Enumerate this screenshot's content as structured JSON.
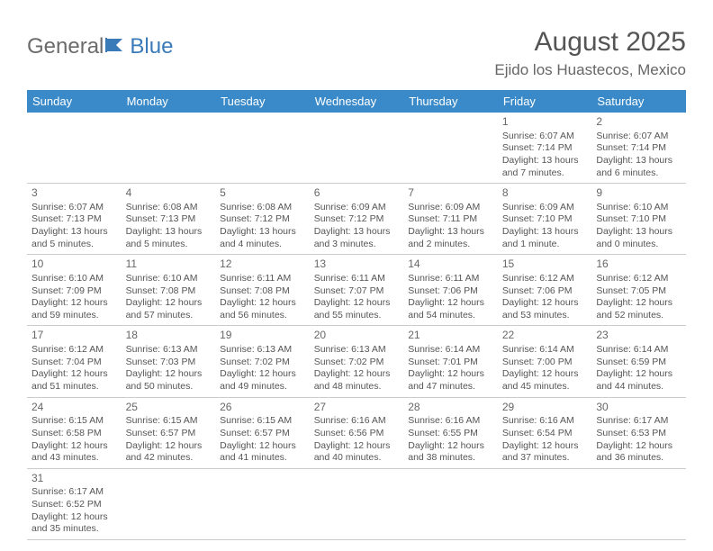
{
  "logo": {
    "part1": "General",
    "part2": "Blue"
  },
  "title": "August 2025",
  "location": "Ejido los Huastecos, Mexico",
  "weekdays": [
    "Sunday",
    "Monday",
    "Tuesday",
    "Wednesday",
    "Thursday",
    "Friday",
    "Saturday"
  ],
  "colors": {
    "header_bg": "#3a8ac9",
    "brand_gray": "#6b6b6b",
    "brand_blue": "#3a7ab8"
  },
  "grid": [
    [
      null,
      null,
      null,
      null,
      null,
      {
        "d": "1",
        "sr": "Sunrise: 6:07 AM",
        "ss": "Sunset: 7:14 PM",
        "dl1": "Daylight: 13 hours",
        "dl2": "and 7 minutes."
      },
      {
        "d": "2",
        "sr": "Sunrise: 6:07 AM",
        "ss": "Sunset: 7:14 PM",
        "dl1": "Daylight: 13 hours",
        "dl2": "and 6 minutes."
      }
    ],
    [
      {
        "d": "3",
        "sr": "Sunrise: 6:07 AM",
        "ss": "Sunset: 7:13 PM",
        "dl1": "Daylight: 13 hours",
        "dl2": "and 5 minutes."
      },
      {
        "d": "4",
        "sr": "Sunrise: 6:08 AM",
        "ss": "Sunset: 7:13 PM",
        "dl1": "Daylight: 13 hours",
        "dl2": "and 5 minutes."
      },
      {
        "d": "5",
        "sr": "Sunrise: 6:08 AM",
        "ss": "Sunset: 7:12 PM",
        "dl1": "Daylight: 13 hours",
        "dl2": "and 4 minutes."
      },
      {
        "d": "6",
        "sr": "Sunrise: 6:09 AM",
        "ss": "Sunset: 7:12 PM",
        "dl1": "Daylight: 13 hours",
        "dl2": "and 3 minutes."
      },
      {
        "d": "7",
        "sr": "Sunrise: 6:09 AM",
        "ss": "Sunset: 7:11 PM",
        "dl1": "Daylight: 13 hours",
        "dl2": "and 2 minutes."
      },
      {
        "d": "8",
        "sr": "Sunrise: 6:09 AM",
        "ss": "Sunset: 7:10 PM",
        "dl1": "Daylight: 13 hours",
        "dl2": "and 1 minute."
      },
      {
        "d": "9",
        "sr": "Sunrise: 6:10 AM",
        "ss": "Sunset: 7:10 PM",
        "dl1": "Daylight: 13 hours",
        "dl2": "and 0 minutes."
      }
    ],
    [
      {
        "d": "10",
        "sr": "Sunrise: 6:10 AM",
        "ss": "Sunset: 7:09 PM",
        "dl1": "Daylight: 12 hours",
        "dl2": "and 59 minutes."
      },
      {
        "d": "11",
        "sr": "Sunrise: 6:10 AM",
        "ss": "Sunset: 7:08 PM",
        "dl1": "Daylight: 12 hours",
        "dl2": "and 57 minutes."
      },
      {
        "d": "12",
        "sr": "Sunrise: 6:11 AM",
        "ss": "Sunset: 7:08 PM",
        "dl1": "Daylight: 12 hours",
        "dl2": "and 56 minutes."
      },
      {
        "d": "13",
        "sr": "Sunrise: 6:11 AM",
        "ss": "Sunset: 7:07 PM",
        "dl1": "Daylight: 12 hours",
        "dl2": "and 55 minutes."
      },
      {
        "d": "14",
        "sr": "Sunrise: 6:11 AM",
        "ss": "Sunset: 7:06 PM",
        "dl1": "Daylight: 12 hours",
        "dl2": "and 54 minutes."
      },
      {
        "d": "15",
        "sr": "Sunrise: 6:12 AM",
        "ss": "Sunset: 7:06 PM",
        "dl1": "Daylight: 12 hours",
        "dl2": "and 53 minutes."
      },
      {
        "d": "16",
        "sr": "Sunrise: 6:12 AM",
        "ss": "Sunset: 7:05 PM",
        "dl1": "Daylight: 12 hours",
        "dl2": "and 52 minutes."
      }
    ],
    [
      {
        "d": "17",
        "sr": "Sunrise: 6:12 AM",
        "ss": "Sunset: 7:04 PM",
        "dl1": "Daylight: 12 hours",
        "dl2": "and 51 minutes."
      },
      {
        "d": "18",
        "sr": "Sunrise: 6:13 AM",
        "ss": "Sunset: 7:03 PM",
        "dl1": "Daylight: 12 hours",
        "dl2": "and 50 minutes."
      },
      {
        "d": "19",
        "sr": "Sunrise: 6:13 AM",
        "ss": "Sunset: 7:02 PM",
        "dl1": "Daylight: 12 hours",
        "dl2": "and 49 minutes."
      },
      {
        "d": "20",
        "sr": "Sunrise: 6:13 AM",
        "ss": "Sunset: 7:02 PM",
        "dl1": "Daylight: 12 hours",
        "dl2": "and 48 minutes."
      },
      {
        "d": "21",
        "sr": "Sunrise: 6:14 AM",
        "ss": "Sunset: 7:01 PM",
        "dl1": "Daylight: 12 hours",
        "dl2": "and 47 minutes."
      },
      {
        "d": "22",
        "sr": "Sunrise: 6:14 AM",
        "ss": "Sunset: 7:00 PM",
        "dl1": "Daylight: 12 hours",
        "dl2": "and 45 minutes."
      },
      {
        "d": "23",
        "sr": "Sunrise: 6:14 AM",
        "ss": "Sunset: 6:59 PM",
        "dl1": "Daylight: 12 hours",
        "dl2": "and 44 minutes."
      }
    ],
    [
      {
        "d": "24",
        "sr": "Sunrise: 6:15 AM",
        "ss": "Sunset: 6:58 PM",
        "dl1": "Daylight: 12 hours",
        "dl2": "and 43 minutes."
      },
      {
        "d": "25",
        "sr": "Sunrise: 6:15 AM",
        "ss": "Sunset: 6:57 PM",
        "dl1": "Daylight: 12 hours",
        "dl2": "and 42 minutes."
      },
      {
        "d": "26",
        "sr": "Sunrise: 6:15 AM",
        "ss": "Sunset: 6:57 PM",
        "dl1": "Daylight: 12 hours",
        "dl2": "and 41 minutes."
      },
      {
        "d": "27",
        "sr": "Sunrise: 6:16 AM",
        "ss": "Sunset: 6:56 PM",
        "dl1": "Daylight: 12 hours",
        "dl2": "and 40 minutes."
      },
      {
        "d": "28",
        "sr": "Sunrise: 6:16 AM",
        "ss": "Sunset: 6:55 PM",
        "dl1": "Daylight: 12 hours",
        "dl2": "and 38 minutes."
      },
      {
        "d": "29",
        "sr": "Sunrise: 6:16 AM",
        "ss": "Sunset: 6:54 PM",
        "dl1": "Daylight: 12 hours",
        "dl2": "and 37 minutes."
      },
      {
        "d": "30",
        "sr": "Sunrise: 6:17 AM",
        "ss": "Sunset: 6:53 PM",
        "dl1": "Daylight: 12 hours",
        "dl2": "and 36 minutes."
      }
    ],
    [
      {
        "d": "31",
        "sr": "Sunrise: 6:17 AM",
        "ss": "Sunset: 6:52 PM",
        "dl1": "Daylight: 12 hours",
        "dl2": "and 35 minutes."
      },
      null,
      null,
      null,
      null,
      null,
      null
    ]
  ]
}
